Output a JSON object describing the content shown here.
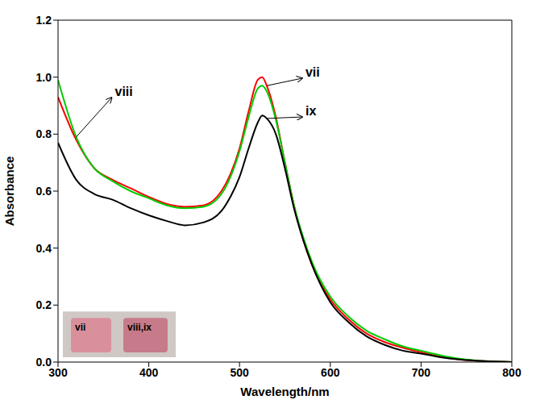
{
  "chart_data": {
    "type": "line",
    "x_label": "Wavelength/nm",
    "y_label": "Absorbance",
    "x": [
      300,
      320,
      340,
      360,
      380,
      400,
      420,
      440,
      460,
      480,
      490,
      500,
      510,
      520,
      525,
      530,
      540,
      550,
      560,
      570,
      580,
      600,
      620,
      640,
      660,
      680,
      700,
      720,
      740,
      760,
      780,
      800
    ],
    "series": [
      {
        "name": "vii",
        "color": "#ff0000",
        "values": [
          0.93,
          0.78,
          0.68,
          0.64,
          0.61,
          0.58,
          0.555,
          0.545,
          0.55,
          0.6,
          0.66,
          0.75,
          0.88,
          0.99,
          1.0,
          0.97,
          0.86,
          0.7,
          0.55,
          0.43,
          0.34,
          0.22,
          0.15,
          0.1,
          0.07,
          0.05,
          0.035,
          0.02,
          0.01,
          0.005,
          0.002,
          0
        ]
      },
      {
        "name": "viii",
        "color": "#00cc00",
        "values": [
          0.99,
          0.79,
          0.68,
          0.635,
          0.6,
          0.575,
          0.55,
          0.54,
          0.545,
          0.59,
          0.65,
          0.74,
          0.86,
          0.96,
          0.97,
          0.95,
          0.85,
          0.7,
          0.55,
          0.44,
          0.35,
          0.23,
          0.16,
          0.11,
          0.08,
          0.055,
          0.04,
          0.025,
          0.013,
          0.006,
          0.002,
          0
        ]
      },
      {
        "name": "ix",
        "color": "#000000",
        "values": [
          0.77,
          0.64,
          0.59,
          0.57,
          0.54,
          0.515,
          0.495,
          0.48,
          0.49,
          0.53,
          0.58,
          0.65,
          0.75,
          0.84,
          0.865,
          0.855,
          0.8,
          0.68,
          0.54,
          0.43,
          0.34,
          0.21,
          0.14,
          0.09,
          0.06,
          0.04,
          0.03,
          0.018,
          0.01,
          0.005,
          0.002,
          0
        ]
      }
    ],
    "xlim": [
      300,
      800
    ],
    "xticks": [
      300,
      400,
      500,
      600,
      700,
      800
    ],
    "ylim": [
      0,
      1.2
    ],
    "yticks": [
      {
        "value": 0,
        "label": "0.0"
      },
      0.2,
      0.4,
      0.6,
      0.8,
      {
        "value": 1,
        "label": "1.0"
      },
      1.2
    ],
    "grid": false,
    "annotations": [
      "vii",
      "viii,ix"
    ]
  }
}
